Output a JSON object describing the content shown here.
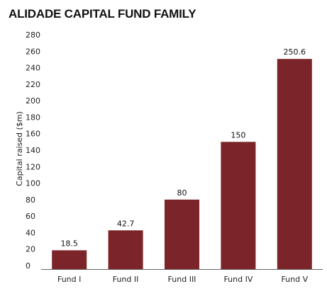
{
  "chart_data": {
    "type": "bar",
    "title": "ALIDADE CAPITAL FUND FAMILY",
    "xlabel": "",
    "ylabel": "Capital raised ($m)",
    "categories": [
      "Fund I",
      "Fund II",
      "Fund III",
      "Fund IV",
      "Fund V"
    ],
    "values": [
      18.5,
      42.7,
      80,
      150,
      250.6
    ],
    "data_labels": [
      "18.5",
      "42.7",
      "80",
      "150",
      "250.6"
    ],
    "ylim": [
      0,
      280
    ],
    "yticks": [
      0,
      20,
      40,
      60,
      80,
      100,
      120,
      140,
      160,
      180,
      200,
      220,
      240,
      260,
      280
    ],
    "grid": false,
    "legend": "none",
    "bar_color": "#7b2429"
  }
}
